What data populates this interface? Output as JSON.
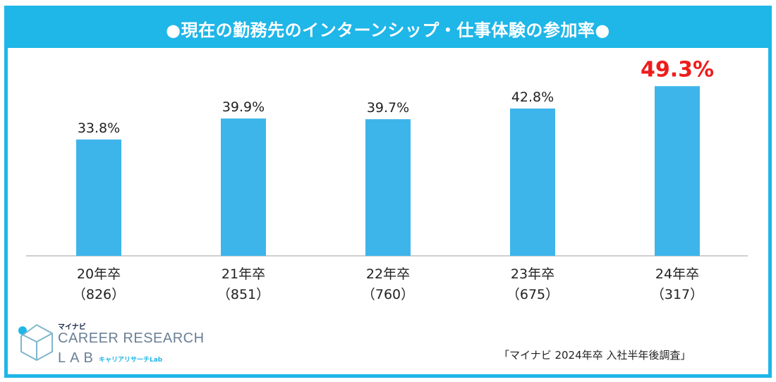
{
  "title": "●現在の勤務先のインターンシップ・仕事体験の参加率●",
  "chart_data": {
    "type": "bar",
    "categories": [
      "20年卒",
      "21年卒",
      "22年卒",
      "23年卒",
      "24年卒"
    ],
    "sample_sizes": [
      "（826）",
      "（851）",
      "（760）",
      "（675）",
      "（317）"
    ],
    "values": [
      33.8,
      39.9,
      39.7,
      42.8,
      49.3
    ],
    "value_labels": [
      "33.8%",
      "39.9%",
      "39.7%",
      "42.8%",
      "49.3%"
    ],
    "highlight_index": 4,
    "unit": "%",
    "ylim": [
      0,
      60
    ],
    "grid": false,
    "colors": {
      "bar": "#3db5ea",
      "label": "#222222",
      "highlight_label": "#ef1c1c",
      "frame": "#1fb6e8"
    }
  },
  "logo": {
    "brand_small": "マイナビ",
    "brand_main": "CAREER RESEARCH",
    "brand_lab": "LAB",
    "brand_sub": "キャリアリサーチLab",
    "icon": "cube-person-icon"
  },
  "source": "「マイナビ 2024年卒 入社半年後調査」"
}
